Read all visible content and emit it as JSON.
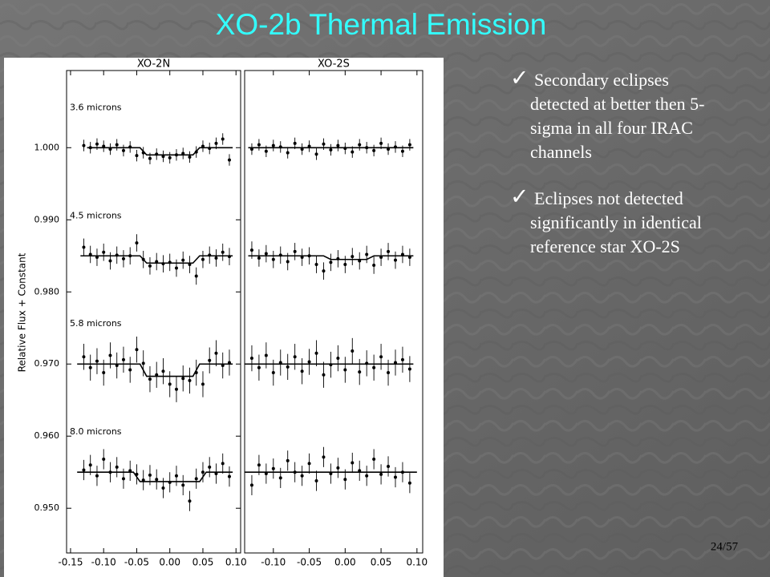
{
  "slide": {
    "title": "XO-2b Thermal Emission",
    "page_number": "24/57",
    "bullets": [
      {
        "lines": [
          "Secondary eclipses",
          "detected at better then 5-",
          "sigma in all four IRAC",
          "channels"
        ]
      },
      {
        "lines": [
          "Eclipses not detected",
          "significantly in identical",
          "reference star XO-2S"
        ]
      }
    ]
  },
  "chart_data": [
    {
      "type": "scatter",
      "title": "XO-2N",
      "ylabel": "Relative Flux + Constant",
      "xlim": [
        -0.156,
        0.107
      ],
      "ylim": [
        0.9438,
        1.0107
      ],
      "xticks": [
        {
          "value": -0.15,
          "label": "-0.15"
        },
        {
          "value": -0.1,
          "label": "-0.10"
        },
        {
          "value": -0.05,
          "label": "-0.05"
        },
        {
          "value": 0,
          "label": "0.00"
        },
        {
          "value": 0.05,
          "label": "0.05"
        },
        {
          "value": 0.1,
          "label": "0.10"
        }
      ],
      "yticks": [
        {
          "value": 0.95,
          "label": "0.950"
        },
        {
          "value": 0.96,
          "label": "0.960"
        },
        {
          "value": 0.97,
          "label": "0.970"
        },
        {
          "value": 0.98,
          "label": "0.980"
        },
        {
          "value": 0.99,
          "label": "0.990"
        },
        {
          "value": 1,
          "label": "1.000"
        }
      ],
      "series": [
        {
          "name": "3.6 microns",
          "color": "#000000",
          "error": 0.0008,
          "x": [
            -0.13,
            -0.12,
            -0.11,
            -0.1,
            -0.09,
            -0.08,
            -0.07,
            -0.06,
            -0.05,
            -0.04,
            -0.03,
            -0.02,
            -0.01,
            0,
            0.01,
            0.02,
            0.03,
            0.04,
            0.05,
            0.06,
            0.07,
            0.08,
            0.09
          ],
          "values": [
            1.0003,
            1.0,
            1.0005,
            1.0002,
            0.9998,
            1.0004,
            0.9996,
            1.0001,
            0.9989,
            0.9993,
            0.9985,
            0.9991,
            0.9988,
            0.9986,
            0.999,
            0.9992,
            0.9987,
            0.9994,
            1.0002,
            0.9999,
            1.0006,
            1.0012,
            0.9983
          ],
          "model_x": [
            -0.125,
            -0.045,
            -0.035,
            0.035,
            0.045,
            0.095
          ],
          "model": [
            1.0,
            1.0,
            0.999,
            0.999,
            1.0,
            1.0
          ]
        },
        {
          "name": "4.5 microns",
          "color": "#000000",
          "error": 0.0012,
          "x": [
            -0.13,
            -0.12,
            -0.11,
            -0.1,
            -0.09,
            -0.08,
            -0.07,
            -0.06,
            -0.05,
            -0.04,
            -0.03,
            -0.02,
            -0.01,
            0,
            0.01,
            0.02,
            0.03,
            0.04,
            0.05,
            0.06,
            0.07,
            0.08,
            0.09
          ],
          "values": [
            0.9862,
            0.9852,
            0.9848,
            0.9855,
            0.9843,
            0.9851,
            0.9846,
            0.985,
            0.9868,
            0.9845,
            0.9836,
            0.9842,
            0.9839,
            0.9841,
            0.9833,
            0.9844,
            0.9838,
            0.9822,
            0.9845,
            0.9851,
            0.9847,
            0.9855,
            0.9849
          ],
          "model_x": [
            -0.135,
            -0.045,
            -0.035,
            0.035,
            0.045,
            0.095
          ],
          "model": [
            0.985,
            0.985,
            0.984,
            0.984,
            0.985,
            0.985
          ]
        },
        {
          "name": "5.8 microns",
          "color": "#000000",
          "error": 0.0018,
          "x": [
            -0.13,
            -0.12,
            -0.11,
            -0.1,
            -0.09,
            -0.08,
            -0.07,
            -0.06,
            -0.05,
            -0.04,
            -0.03,
            -0.02,
            -0.01,
            0,
            0.01,
            0.02,
            0.03,
            0.04,
            0.05,
            0.06,
            0.07,
            0.08,
            0.09
          ],
          "values": [
            0.971,
            0.9695,
            0.9704,
            0.9688,
            0.9712,
            0.9698,
            0.9706,
            0.9692,
            0.972,
            0.9701,
            0.9679,
            0.9685,
            0.969,
            0.9672,
            0.9665,
            0.968,
            0.9677,
            0.9688,
            0.9672,
            0.9705,
            0.9715,
            0.9698,
            0.9702
          ],
          "model_x": [
            -0.14,
            -0.045,
            -0.035,
            0.035,
            0.045,
            0.095
          ],
          "model": [
            0.97,
            0.97,
            0.9683,
            0.9683,
            0.97,
            0.97
          ]
        },
        {
          "name": "8.0 microns",
          "color": "#000000",
          "error": 0.0014,
          "x": [
            -0.13,
            -0.12,
            -0.11,
            -0.1,
            -0.09,
            -0.08,
            -0.07,
            -0.06,
            -0.05,
            -0.04,
            -0.03,
            -0.02,
            -0.01,
            0,
            0.01,
            0.02,
            0.03,
            0.04,
            0.05,
            0.06,
            0.07,
            0.08,
            0.09
          ],
          "values": [
            0.9553,
            0.956,
            0.9545,
            0.9568,
            0.955,
            0.9557,
            0.9541,
            0.9552,
            0.9547,
            0.9539,
            0.9546,
            0.954,
            0.9528,
            0.9536,
            0.9545,
            0.9532,
            0.951,
            0.9541,
            0.955,
            0.9557,
            0.9548,
            0.9562,
            0.9544
          ],
          "model_x": [
            -0.14,
            -0.055,
            -0.045,
            0.045,
            0.055,
            0.095
          ],
          "model": [
            0.955,
            0.955,
            0.9537,
            0.9537,
            0.955,
            0.955
          ]
        }
      ]
    },
    {
      "type": "scatter",
      "title": "XO-2S",
      "xlim": [
        -0.14,
        0.108
      ],
      "ylim": [
        0.9438,
        1.0107
      ],
      "xticks": [
        {
          "value": -0.1,
          "label": "-0.10"
        },
        {
          "value": -0.05,
          "label": "-0.05"
        },
        {
          "value": 0,
          "label": "0.00"
        },
        {
          "value": 0.05,
          "label": "0.05"
        },
        {
          "value": 0.1,
          "label": "0.10"
        }
      ],
      "series": [
        {
          "color": "#000000",
          "error": 0.0008,
          "x": [
            -0.13,
            -0.12,
            -0.11,
            -0.1,
            -0.09,
            -0.08,
            -0.07,
            -0.06,
            -0.05,
            -0.04,
            -0.03,
            -0.02,
            -0.01,
            0,
            0.01,
            0.02,
            0.03,
            0.04,
            0.05,
            0.06,
            0.07,
            0.08,
            0.09
          ],
          "values": [
            0.9998,
            1.0004,
            0.9995,
            1.0003,
            1.0001,
            0.9993,
            1.0006,
            0.9998,
            1.0002,
            0.9991,
            1.0005,
            0.9997,
            1.0003,
            0.9999,
            0.9994,
            1.0004,
            1.0,
            0.9996,
            1.0006,
            0.9998,
            1.0001,
            0.9995,
            1.0004
          ],
          "model_x": [
            -0.135,
            0.095
          ],
          "model": [
            1.0,
            1.0
          ]
        },
        {
          "color": "#000000",
          "error": 0.0012,
          "x": [
            -0.13,
            -0.12,
            -0.11,
            -0.1,
            -0.09,
            -0.08,
            -0.07,
            -0.06,
            -0.05,
            -0.04,
            -0.03,
            -0.02,
            -0.01,
            0,
            0.01,
            0.02,
            0.03,
            0.04,
            0.05,
            0.06,
            0.07,
            0.08,
            0.09
          ],
          "values": [
            0.9858,
            0.9847,
            0.9853,
            0.9845,
            0.9851,
            0.9842,
            0.9856,
            0.9848,
            0.985,
            0.9838,
            0.9829,
            0.9841,
            0.9846,
            0.9838,
            0.9849,
            0.9843,
            0.9852,
            0.9837,
            0.9848,
            0.9856,
            0.9844,
            0.9852,
            0.9848
          ],
          "model_x": [
            -0.135,
            -0.03,
            -0.02,
            0.03,
            0.04,
            0.095
          ],
          "model": [
            0.985,
            0.985,
            0.9845,
            0.9845,
            0.985,
            0.985
          ]
        },
        {
          "color": "#000000",
          "error": 0.0018,
          "x": [
            -0.13,
            -0.12,
            -0.11,
            -0.1,
            -0.09,
            -0.08,
            -0.07,
            -0.06,
            -0.05,
            -0.04,
            -0.03,
            -0.02,
            -0.01,
            0,
            0.01,
            0.02,
            0.03,
            0.04,
            0.05,
            0.06,
            0.07,
            0.08,
            0.09
          ],
          "values": [
            0.9708,
            0.9695,
            0.9712,
            0.9688,
            0.9702,
            0.9696,
            0.971,
            0.969,
            0.9703,
            0.9715,
            0.9685,
            0.9699,
            0.9708,
            0.9692,
            0.9718,
            0.9689,
            0.9701,
            0.9695,
            0.971,
            0.9688,
            0.9702,
            0.9706,
            0.9693
          ],
          "model_x": [
            -0.14,
            0.095
          ],
          "model": [
            0.97,
            0.97
          ]
        },
        {
          "color": "#000000",
          "error": 0.0014,
          "x": [
            -0.13,
            -0.12,
            -0.11,
            -0.1,
            -0.09,
            -0.08,
            -0.07,
            -0.06,
            -0.05,
            -0.04,
            -0.03,
            -0.02,
            -0.01,
            0,
            0.01,
            0.02,
            0.03,
            0.04,
            0.05,
            0.06,
            0.07,
            0.08,
            0.09
          ],
          "values": [
            0.9532,
            0.956,
            0.9548,
            0.9555,
            0.9542,
            0.9566,
            0.955,
            0.9545,
            0.9562,
            0.9538,
            0.9571,
            0.9548,
            0.9556,
            0.954,
            0.9563,
            0.9552,
            0.9545,
            0.9568,
            0.9547,
            0.9558,
            0.9543,
            0.955,
            0.9535
          ],
          "model_x": [
            -0.14,
            0.1
          ],
          "model": [
            0.955,
            0.955
          ]
        }
      ]
    }
  ]
}
